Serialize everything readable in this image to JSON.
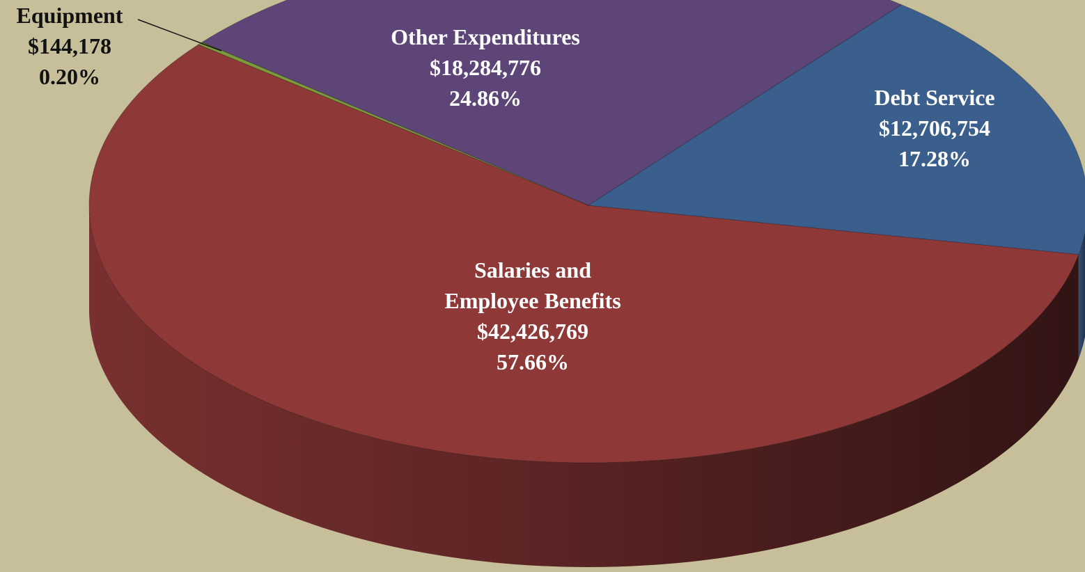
{
  "chart_data": {
    "type": "pie",
    "categories": [
      "Salaries and\nEmployee Benefits",
      "Equipment",
      "Other Expenditures",
      "Debt Service"
    ],
    "values": [
      42426769,
      144178,
      18284776,
      12706754
    ],
    "value_labels": [
      "$42,426,769",
      "$144,178",
      "$18,284,776",
      "$12,706,754"
    ],
    "percent_labels": [
      "57.66%",
      "0.20%",
      "24.86%",
      "17.28%"
    ],
    "colors": [
      "#8e3838",
      "#7d9a3c",
      "#5d4677",
      "#3b5f8d"
    ]
  }
}
